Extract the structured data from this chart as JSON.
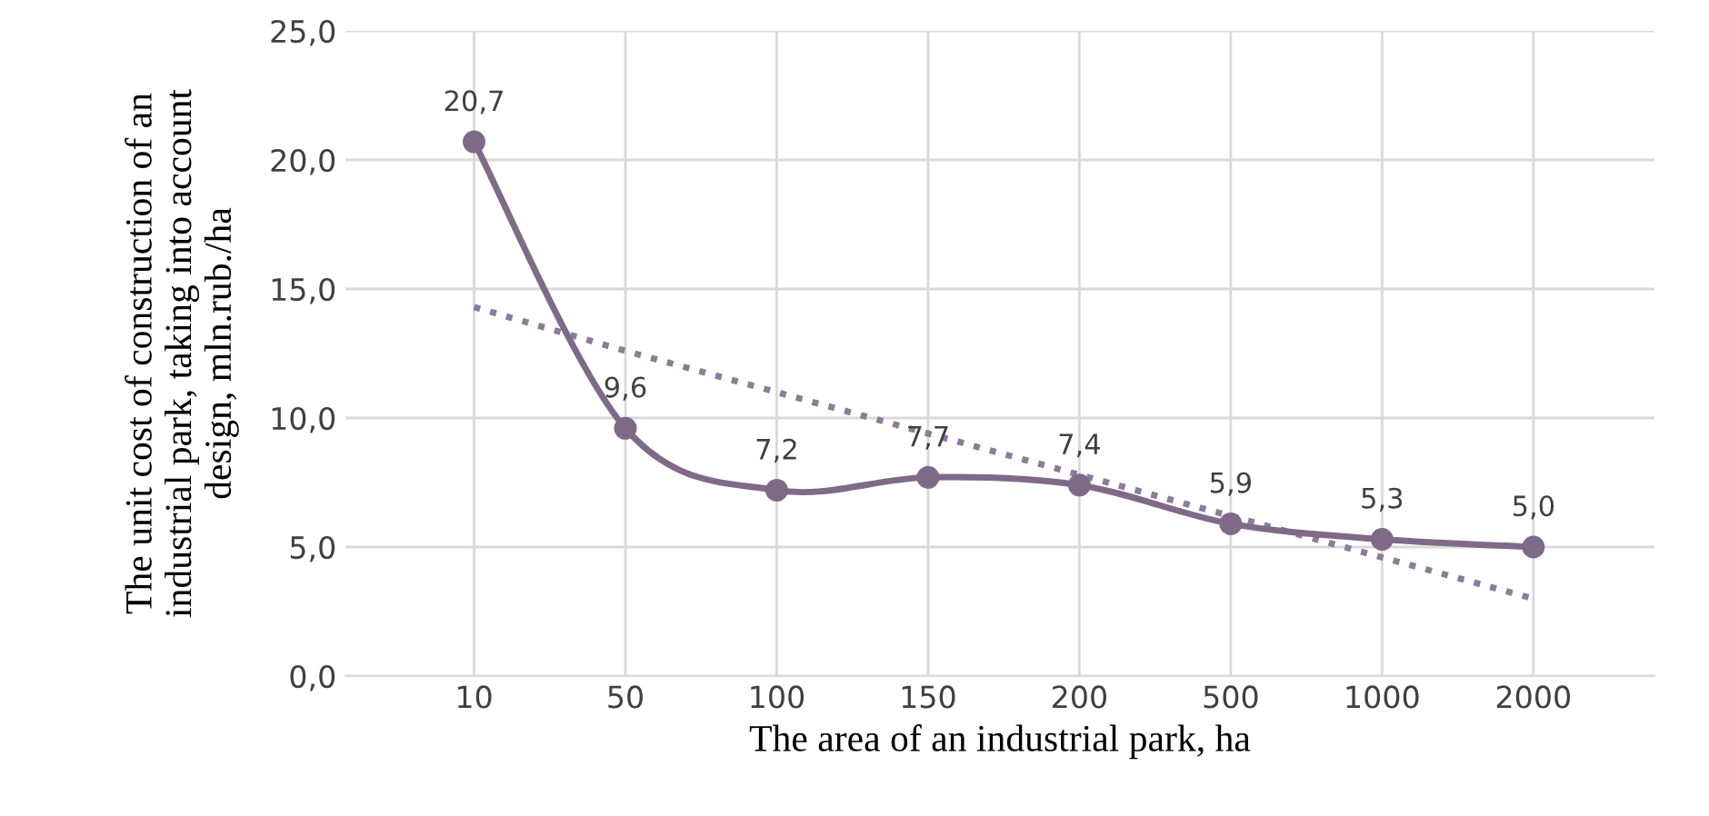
{
  "chart_data": {
    "type": "line",
    "xlabel": "The area of an industrial park, ha",
    "ylabel": "The unit cost of construction of an\nindustrial park, taking into account\ndesign, mln.rub./ha",
    "categories": [
      "10",
      "50",
      "100",
      "150",
      "200",
      "500",
      "1000",
      "2000"
    ],
    "series": [
      {
        "color": "#7f6a88",
        "values": [
          20.7,
          9.6,
          7.2,
          7.7,
          7.4,
          5.9,
          5.3,
          5.0
        ],
        "value_labels": [
          "20,7",
          "9,6",
          "7,2",
          "7,7",
          "7,4",
          "5,9",
          "5,3",
          "5,0"
        ],
        "marker": "circle",
        "line_style": "solid"
      },
      {
        "color": "#8e7a99",
        "values": [
          14.3,
          12.6,
          11.0,
          9.4,
          7.8,
          6.2,
          4.6,
          3.0
        ],
        "marker": "none",
        "line_style": "dotted"
      }
    ],
    "ylim": [
      0,
      25
    ],
    "yticks": [
      {
        "value": 0,
        "label": "0,0"
      },
      {
        "value": 5,
        "label": "5,0"
      },
      {
        "value": 10,
        "label": "10,0"
      },
      {
        "value": 15,
        "label": "15,0"
      },
      {
        "value": 20,
        "label": "20,0"
      },
      {
        "value": 25,
        "label": "25,0"
      }
    ],
    "grid": true,
    "legend": false
  }
}
